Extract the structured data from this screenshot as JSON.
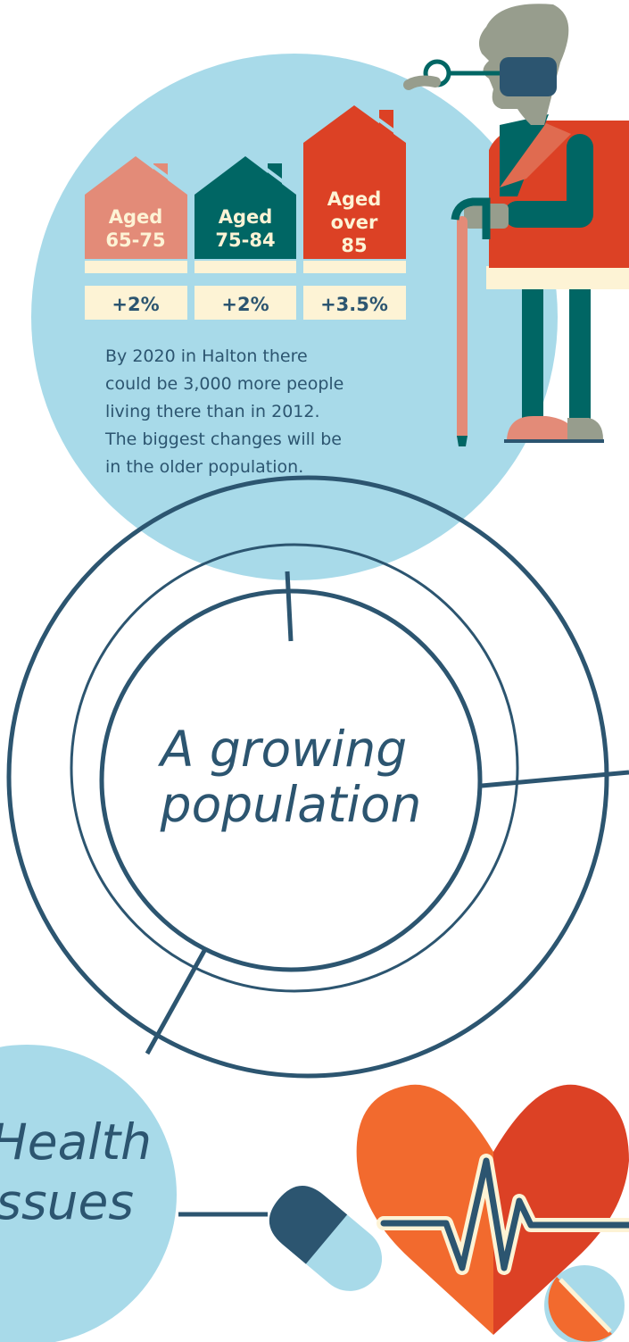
{
  "age_groups": [
    {
      "label_lines": [
        "Aged",
        "65-75"
      ],
      "change": "+2%",
      "color": "#e38b78"
    },
    {
      "label_lines": [
        "Aged",
        "75-84"
      ],
      "change": "+2%",
      "color": "#006664"
    },
    {
      "label_lines": [
        "Aged",
        "over",
        "85"
      ],
      "change": "+3.5%",
      "color": "#dc4125"
    }
  ],
  "caption_lines": [
    "By 2020 in Halton there",
    "could be 3,000 more people",
    "living there than in 2012.",
    "The biggest changes will be",
    "in the older population."
  ],
  "central_title_lines": [
    "A growing",
    "population"
  ],
  "health_title_lines": [
    "Health",
    "Issues"
  ],
  "colors": {
    "light_blue": "#a8dae9",
    "navy": "#2c5570",
    "teal": "#006664",
    "salmon": "#e38b78",
    "red": "#dc4125",
    "orange": "#f26a2e",
    "cream": "#fdf3d5",
    "grey_skin": "#979d8d"
  },
  "icons": [
    "elderly-man-icon",
    "walking-cane-icon",
    "heart-icon",
    "heartbeat-line-icon",
    "capsule-pill-icon",
    "round-pill-icon"
  ]
}
